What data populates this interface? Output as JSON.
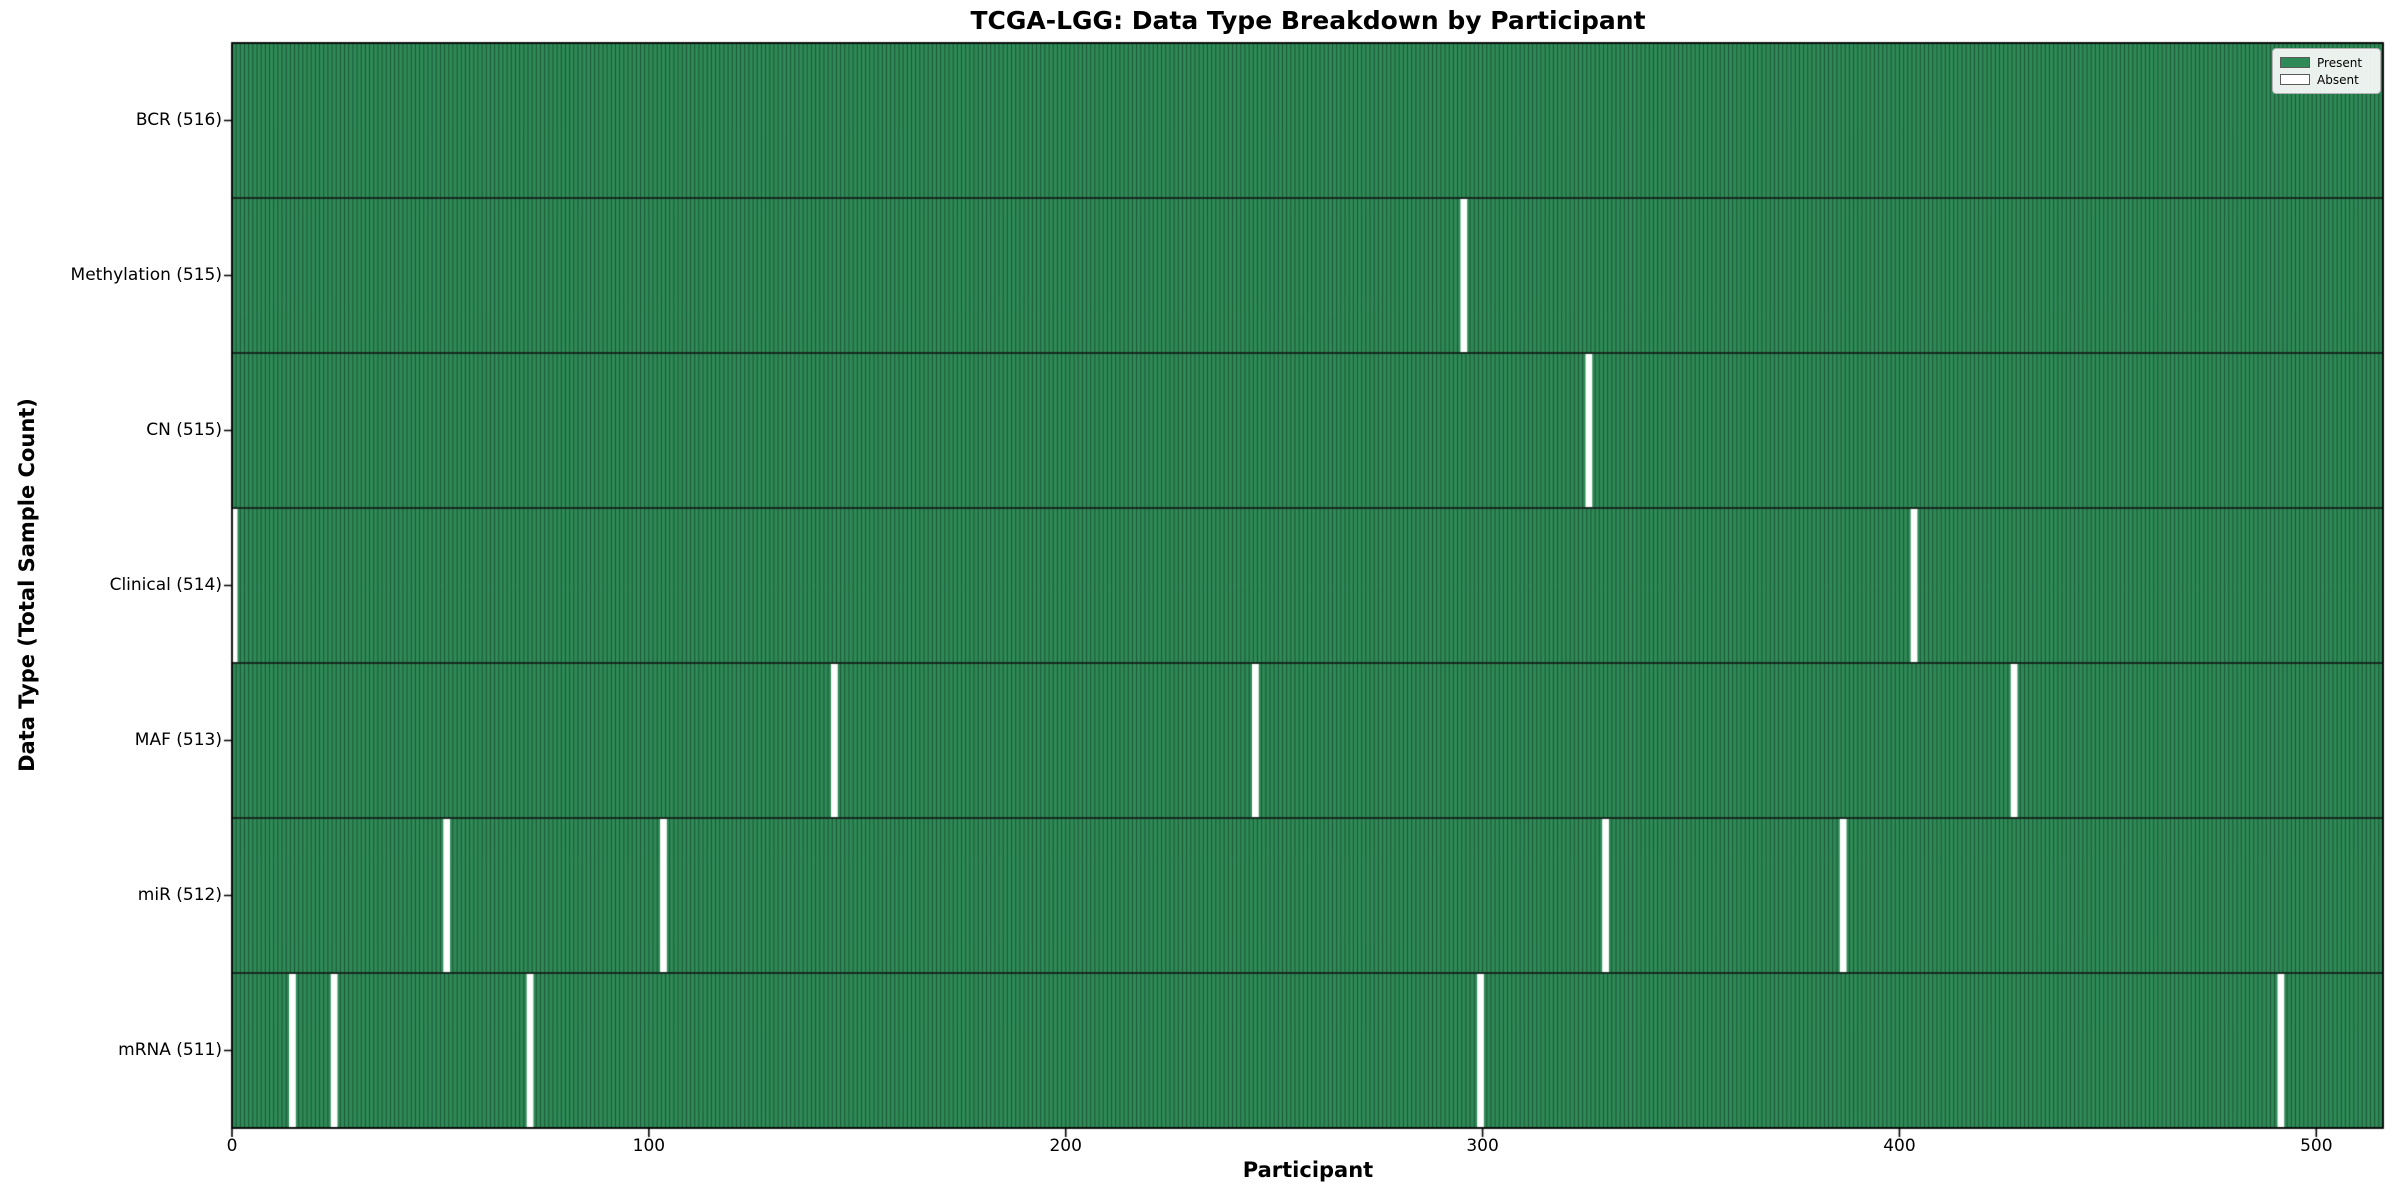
{
  "chart_data": {
    "type": "heatmap",
    "title": "TCGA-LGG: Data Type Breakdown by Participant",
    "xlabel": "Participant",
    "ylabel": "Data Type (Total Sample Count)",
    "n_participants": 516,
    "xlim": [
      0,
      516
    ],
    "x_ticks": [
      0,
      100,
      200,
      300,
      400,
      500
    ],
    "rows": [
      {
        "label": "BCR (516)",
        "data_type": "BCR",
        "total": 516,
        "absent_participants": []
      },
      {
        "label": "Methylation (515)",
        "data_type": "Methylation",
        "total": 515,
        "absent_participants": [
          295
        ]
      },
      {
        "label": "CN (515)",
        "data_type": "CN",
        "total": 515,
        "absent_participants": [
          325
        ]
      },
      {
        "label": "Clinical (514)",
        "data_type": "Clinical",
        "total": 514,
        "absent_participants": [
          0,
          403
        ]
      },
      {
        "label": "MAF (513)",
        "data_type": "MAF",
        "total": 513,
        "absent_participants": [
          144,
          245,
          427
        ]
      },
      {
        "label": "miR (512)",
        "data_type": "miR",
        "total": 512,
        "absent_participants": [
          51,
          103,
          329,
          386
        ]
      },
      {
        "label": "mRNA (511)",
        "data_type": "mRNA",
        "total": 511,
        "absent_participants": [
          14,
          24,
          71,
          299,
          491
        ]
      }
    ],
    "legend": {
      "position": "upper right",
      "entries": [
        {
          "label": "Present",
          "color": "#2e8b57"
        },
        {
          "label": "Absent",
          "color": "#ffffff"
        }
      ]
    },
    "colors": {
      "present": "#2e8b57",
      "absent": "#ffffff",
      "cell_edge": "#1b4a30",
      "row_divider": "#111111",
      "axis": "#000000"
    },
    "grid": false
  }
}
